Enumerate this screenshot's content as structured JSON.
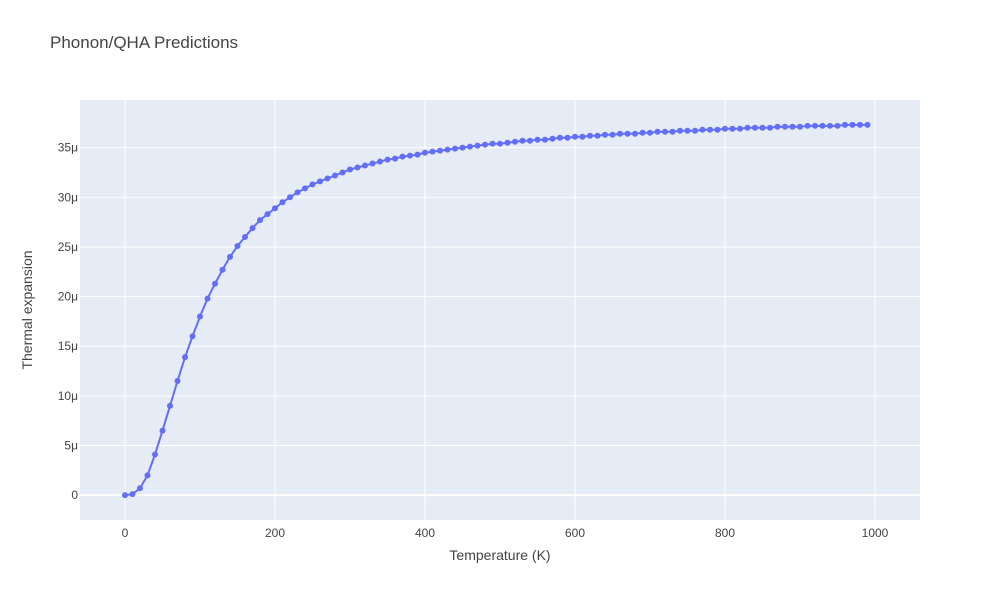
{
  "chart_data": {
    "type": "line",
    "title": "Phonon/QHA Predictions",
    "xlabel": "Temperature (K)",
    "ylabel": "Thermal expansion",
    "xlim": [
      -60,
      1060
    ],
    "ylim": [
      -2.5e-06,
      3.98e-05
    ],
    "xticks": [
      0,
      200,
      400,
      600,
      800,
      1000
    ],
    "xtick_labels": [
      "0",
      "200",
      "400",
      "600",
      "800",
      "1000"
    ],
    "yticks": [
      0,
      5e-06,
      1e-05,
      1.5e-05,
      2e-05,
      2.5e-05,
      3e-05,
      3.5e-05
    ],
    "ytick_labels": [
      "0",
      "5μ",
      "10μ",
      "15μ",
      "20μ",
      "25μ",
      "30μ",
      "35μ"
    ],
    "grid": true,
    "legend": false,
    "colors": {
      "series": "#636efa",
      "plot_bg": "#e5ecf6",
      "grid": "#ffffff"
    },
    "series": [
      {
        "x": [
          0,
          10,
          20,
          30,
          40,
          50,
          60,
          70,
          80,
          90,
          100,
          110,
          120,
          130,
          140,
          150,
          160,
          170,
          180,
          190,
          200,
          210,
          220,
          230,
          240,
          250,
          260,
          270,
          280,
          290,
          300,
          310,
          320,
          330,
          340,
          350,
          360,
          370,
          380,
          390,
          400,
          410,
          420,
          430,
          440,
          450,
          460,
          470,
          480,
          490,
          500,
          510,
          520,
          530,
          540,
          550,
          560,
          570,
          580,
          590,
          600,
          610,
          620,
          630,
          640,
          650,
          660,
          670,
          680,
          690,
          700,
          710,
          720,
          730,
          740,
          750,
          760,
          770,
          780,
          790,
          800,
          810,
          820,
          830,
          840,
          850,
          860,
          870,
          880,
          890,
          900,
          910,
          920,
          930,
          940,
          950,
          960,
          970,
          980,
          990
        ],
        "y": [
          0,
          1e-07,
          7e-07,
          2e-06,
          4.1e-06,
          6.5e-06,
          9e-06,
          1.15e-05,
          1.39e-05,
          1.6e-05,
          1.8e-05,
          1.98e-05,
          2.13e-05,
          2.27e-05,
          2.4e-05,
          2.51e-05,
          2.6e-05,
          2.69e-05,
          2.77e-05,
          2.83e-05,
          2.89e-05,
          2.95e-05,
          3e-05,
          3.05e-05,
          3.09e-05,
          3.13e-05,
          3.16e-05,
          3.19e-05,
          3.22e-05,
          3.25e-05,
          3.28e-05,
          3.3e-05,
          3.32e-05,
          3.34e-05,
          3.36e-05,
          3.38e-05,
          3.39e-05,
          3.41e-05,
          3.42e-05,
          3.43e-05,
          3.45e-05,
          3.46e-05,
          3.47e-05,
          3.48e-05,
          3.49e-05,
          3.5e-05,
          3.51e-05,
          3.52e-05,
          3.53e-05,
          3.54e-05,
          3.54e-05,
          3.55e-05,
          3.56e-05,
          3.57e-05,
          3.57e-05,
          3.58e-05,
          3.58e-05,
          3.59e-05,
          3.6e-05,
          3.6e-05,
          3.61e-05,
          3.61e-05,
          3.62e-05,
          3.62e-05,
          3.63e-05,
          3.63e-05,
          3.64e-05,
          3.64e-05,
          3.64e-05,
          3.65e-05,
          3.65e-05,
          3.66e-05,
          3.66e-05,
          3.66e-05,
          3.67e-05,
          3.67e-05,
          3.67e-05,
          3.68e-05,
          3.68e-05,
          3.68e-05,
          3.69e-05,
          3.69e-05,
          3.69e-05,
          3.7e-05,
          3.7e-05,
          3.7e-05,
          3.7e-05,
          3.71e-05,
          3.71e-05,
          3.71e-05,
          3.71e-05,
          3.72e-05,
          3.72e-05,
          3.72e-05,
          3.72e-05,
          3.72e-05,
          3.73e-05,
          3.73e-05,
          3.73e-05,
          3.73e-05
        ]
      }
    ]
  }
}
